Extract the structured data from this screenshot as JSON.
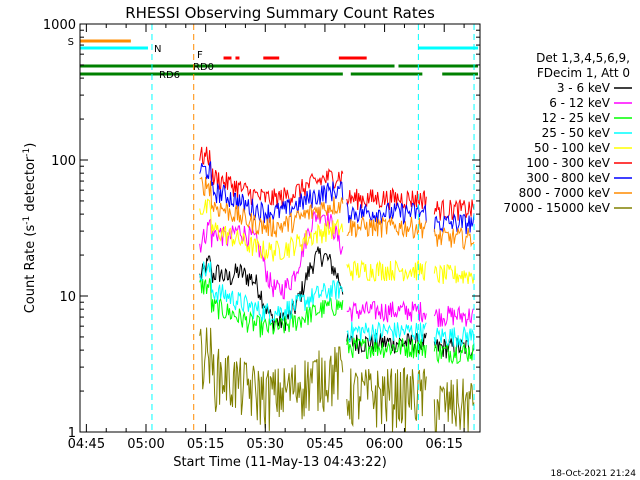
{
  "chart_data": {
    "type": "line",
    "title": "RHESSI Observing Summary Count Rates",
    "xlabel": "Start Time (11-May-13 04:43:22)",
    "ylabel_main": "Count Rate (s",
    "ylabel_sup1": "-1",
    "ylabel_mid": " detector",
    "ylabel_sup2": "-1",
    "ylabel_end": ")",
    "y_scale": "log",
    "ylim": [
      1,
      1000
    ],
    "xlim_minutes_from_0445": [
      -1.6,
      99
    ],
    "x_ticks": [
      {
        "label": "04:45",
        "t": 0
      },
      {
        "label": "05:00",
        "t": 15
      },
      {
        "label": "05:15",
        "t": 30
      },
      {
        "label": "05:30",
        "t": 45
      },
      {
        "label": "05:45",
        "t": 60
      },
      {
        "label": "06:00",
        "t": 75
      },
      {
        "label": "06:15",
        "t": 90
      }
    ],
    "y_ticks": [
      {
        "label": "1",
        "v": 1
      },
      {
        "label": "10",
        "v": 10
      },
      {
        "label": "100",
        "v": 100
      },
      {
        "label": "1000",
        "v": 1000
      }
    ],
    "legend_position": "right",
    "legend_header": [
      "Det 1,3,4,5,6,9,",
      "FDecim 1, Att 0"
    ],
    "series": [
      {
        "name": "3 - 6 keV",
        "color": "#000000",
        "base": 7,
        "bump": 6
      },
      {
        "name": "6 - 12 keV",
        "color": "#ff00ff",
        "base": 12,
        "bump": 14
      },
      {
        "name": "12 - 25 keV",
        "color": "#00ff00",
        "base": 6.5,
        "bump": 1.8
      },
      {
        "name": "25 - 50 keV",
        "color": "#00ffff",
        "base": 8.5,
        "bump": 1.5
      },
      {
        "name": "50 - 100 keV",
        "color": "#ffff00",
        "base": 24,
        "bump": 4
      },
      {
        "name": "100 - 300 keV",
        "color": "#ff0000",
        "base": 58,
        "bump": 20
      },
      {
        "name": "300 - 800 keV",
        "color": "#0000ff",
        "base": 46,
        "bump": 18
      },
      {
        "name": "800 - 7000 keV",
        "color": "#ff8c00",
        "base": 36,
        "bump": 14
      },
      {
        "name": "7000 - 15000 keV",
        "color": "#808000",
        "base": 2.2,
        "bump": 0.4
      }
    ],
    "flags": [
      {
        "label": "S",
        "color": "#ff8c00",
        "segments": [
          [
            -1.6,
            11.2
          ]
        ]
      },
      {
        "label": "N",
        "color": "#00ffff",
        "segments": [
          [
            -1.6,
            15.5
          ],
          [
            83.5,
            98.5
          ]
        ]
      },
      {
        "label": "F",
        "color": "#ff0000",
        "segments": [
          [
            34.5,
            36.5
          ],
          [
            37.5,
            38.5
          ],
          [
            44.5,
            48.5
          ],
          [
            63.5,
            70.5
          ]
        ]
      },
      {
        "label": "RD0",
        "color": "#008000",
        "segments": [
          [
            -1.6,
            77.5
          ],
          [
            78.5,
            98.5
          ]
        ]
      },
      {
        "label": "RD6",
        "color": "#008000",
        "segments": [
          [
            -1.6,
            64.5
          ],
          [
            66.5,
            84.5
          ],
          [
            89.5,
            98.5
          ]
        ]
      }
    ],
    "vertical_markers": [
      {
        "t": 16.5,
        "color": "#00ffff"
      },
      {
        "t": 27.0,
        "color": "#ff8c00"
      },
      {
        "t": 83.5,
        "color": "#00ffff"
      },
      {
        "t": 97.5,
        "color": "#00ffff"
      }
    ],
    "footer_date": "18-Oct-2021 21:24"
  }
}
